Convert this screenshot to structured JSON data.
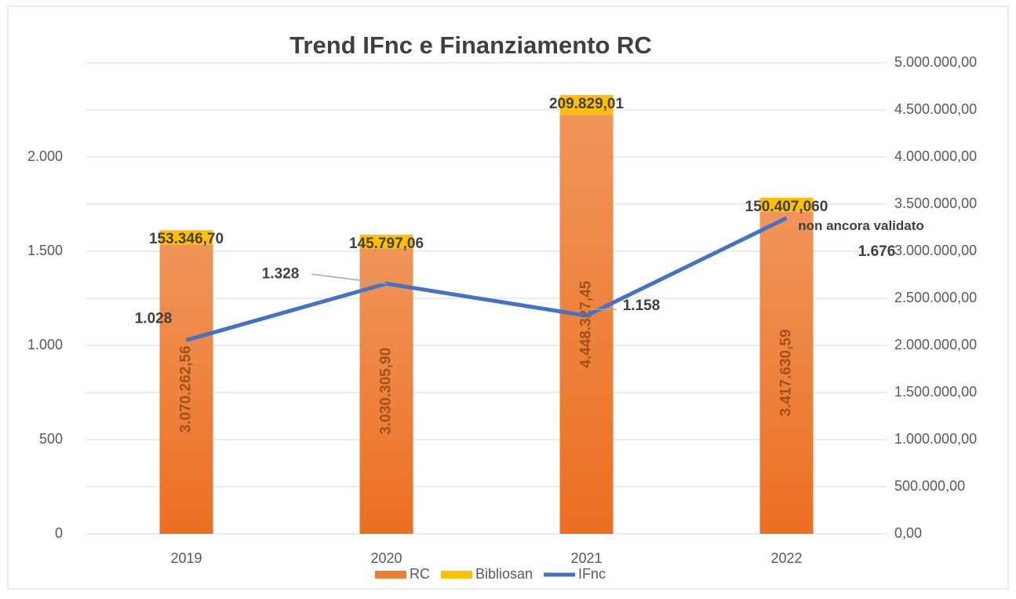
{
  "chart_data": {
    "type": "bar",
    "title": "Trend IFnc e Finanziamento RC",
    "categories": [
      "2019",
      "2020",
      "2021",
      "2022"
    ],
    "series": [
      {
        "name": "RC",
        "color": "#ed7d31",
        "axis": "y2",
        "values": [
          3070262.56,
          3030305.9,
          4448327.45,
          3417630.59
        ],
        "value_labels": [
          "3.070.262,56",
          "3.030.305,90",
          "4.448.327,45",
          "3.417.630,59"
        ]
      },
      {
        "name": "Bibliosan",
        "color": "#ffc000",
        "axis": "y2",
        "values": [
          153346.7,
          145797.06,
          209829.01,
          150407.06
        ],
        "value_labels": [
          "153.346,70",
          "145.797,06",
          "209.829,01",
          "150.407,060"
        ]
      },
      {
        "name": "IFnc",
        "color": "#4472c4",
        "type": "line",
        "values": [
          1028,
          1328,
          1158,
          1676
        ],
        "value_labels": [
          "1.028",
          "1.328",
          "1.158",
          "1.676"
        ]
      }
    ],
    "annotations": [
      "non ancora validato"
    ],
    "ylim": [
      0,
      2500
    ],
    "yticks": [
      0,
      500,
      {
        "value": 1000,
        "label": "1.000"
      },
      {
        "value": 1500,
        "label": "1.500"
      },
      {
        "value": 2000,
        "label": "2.000"
      }
    ],
    "y2lim": [
      0,
      5000000
    ],
    "y2ticks": [
      {
        "value": 0,
        "label": "0,00"
      },
      {
        "value": 500000,
        "label": "500.000,00"
      },
      {
        "value": 1000000,
        "label": "1.000.000,00"
      },
      {
        "value": 1500000,
        "label": "1.500.000,00"
      },
      {
        "value": 2000000,
        "label": "2.000.000,00"
      },
      {
        "value": 2500000,
        "label": "2.500.000,00"
      },
      {
        "value": 3000000,
        "label": "3.000.000,00"
      },
      {
        "value": 3500000,
        "label": "3.500.000,00"
      },
      {
        "value": 4000000,
        "label": "4.000.000,00"
      },
      {
        "value": 4500000,
        "label": "4.500.000,00"
      },
      {
        "value": 5000000,
        "label": "5.000.000,00"
      }
    ],
    "grid": true,
    "legend": "bottom"
  }
}
